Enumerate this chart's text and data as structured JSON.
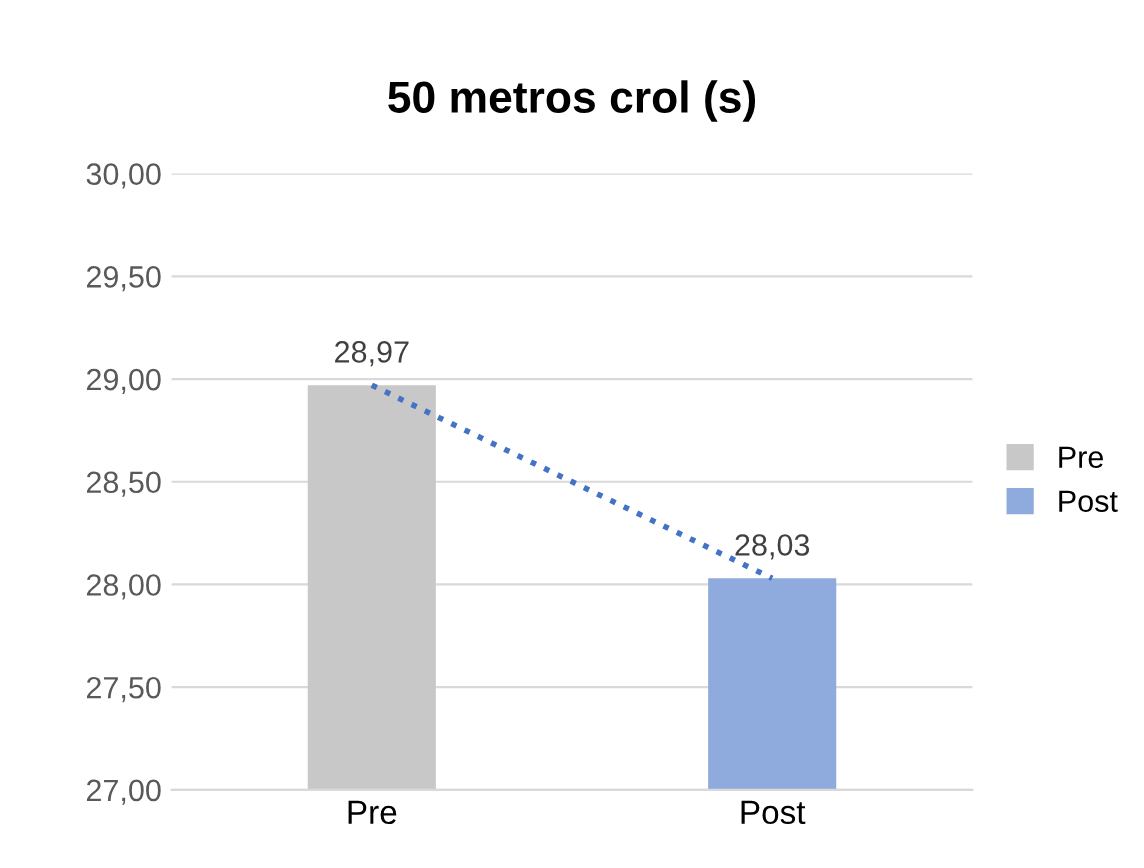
{
  "chart_data": {
    "type": "bar",
    "title": "50 metros crol (s)",
    "categories": [
      "Pre",
      "Post"
    ],
    "series": [
      {
        "name": "Pre",
        "color": "#c8c8c8",
        "values": [
          28.97,
          null
        ],
        "value_labels": [
          "28,97",
          null
        ]
      },
      {
        "name": "Post",
        "color": "#8faadc",
        "values": [
          null,
          28.03
        ],
        "value_labels": [
          null,
          "28,03"
        ]
      },
      {
        "type": "line",
        "color": "#4472c4",
        "line_style": "dotted",
        "marker": "none",
        "values": [
          28.97,
          28.03
        ]
      }
    ],
    "ylim": [
      27,
      30
    ],
    "yticks": [
      {
        "value": 27,
        "label": "27,00"
      },
      {
        "value": 27.5,
        "label": "27,50"
      },
      {
        "value": 28,
        "label": "28,00"
      },
      {
        "value": 28.5,
        "label": "28,50"
      },
      {
        "value": 29,
        "label": "29,00"
      },
      {
        "value": 29.5,
        "label": "29,50"
      },
      {
        "value": 30,
        "label": "30,00"
      }
    ],
    "grid": "y",
    "legend": "right"
  }
}
